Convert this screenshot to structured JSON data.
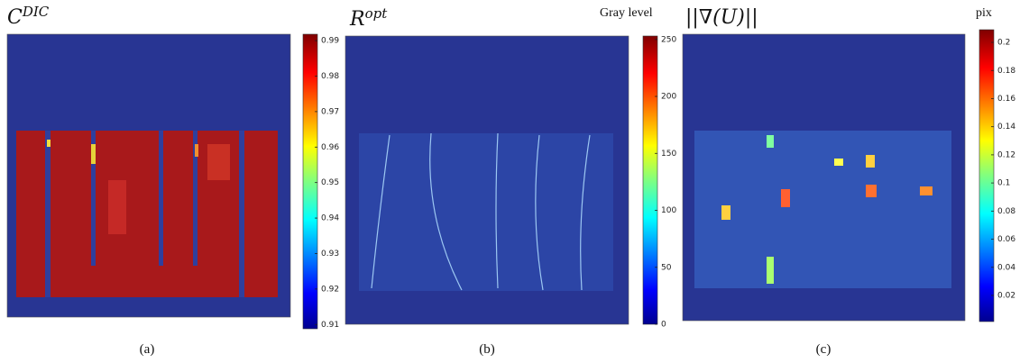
{
  "chart_data": [
    {
      "type": "heatmap",
      "title": "C",
      "title_sup": "DIC",
      "caption": "(a)",
      "colorbar": {
        "lim": [
          0.9088,
          0.9918
        ],
        "ticks": [
          0.91,
          0.92,
          0.93,
          0.94,
          0.95,
          0.96,
          0.97,
          0.98,
          0.99
        ]
      }
    },
    {
      "type": "heatmap",
      "title": "R",
      "title_sup": "opt",
      "caption": "(b)",
      "colorbar": {
        "label": "Gray level",
        "lim": [
          0,
          253
        ],
        "ticks": [
          0,
          50,
          100,
          150,
          200,
          250
        ]
      }
    },
    {
      "type": "heatmap",
      "title": "||∇(U)||",
      "caption": "(c)",
      "colorbar": {
        "label": "pix",
        "lim": [
          0.0014,
          0.209
        ],
        "ticks": [
          0.02,
          0.04,
          0.06,
          0.08,
          0.1,
          0.12,
          0.14,
          0.16,
          0.18,
          0.2
        ]
      }
    }
  ]
}
